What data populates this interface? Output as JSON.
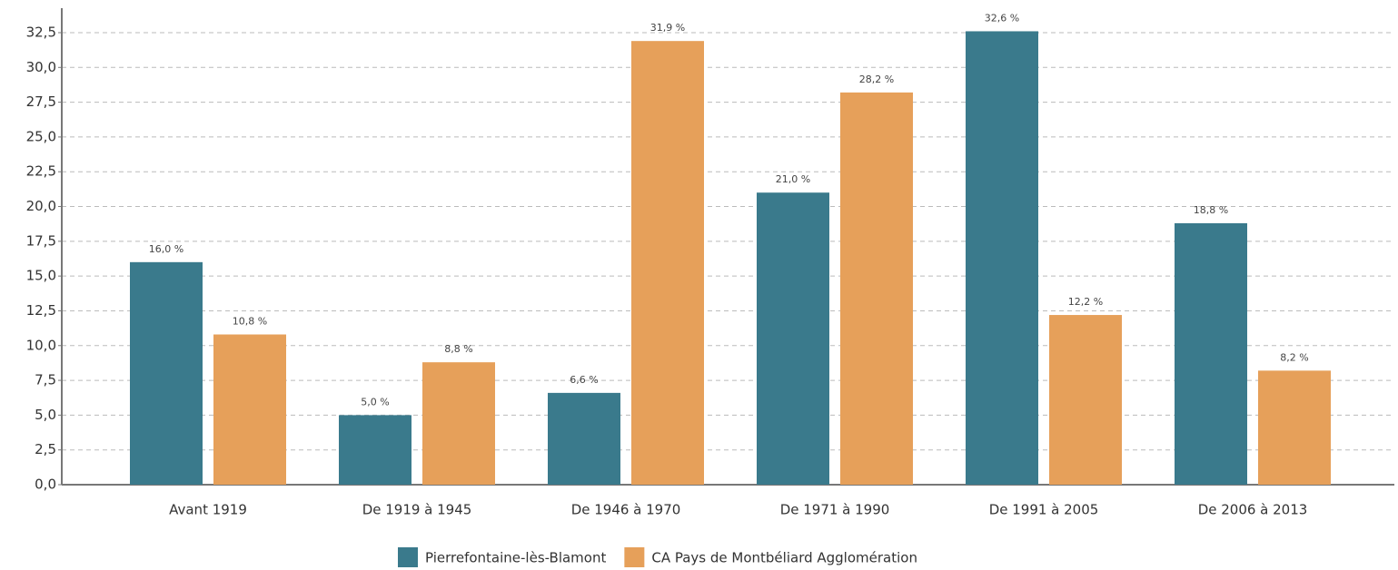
{
  "chart_data": {
    "type": "bar",
    "categories": [
      "Avant 1919",
      "De 1919 à 1945",
      "De 1946 à 1970",
      "De 1971 à 1990",
      "De 1991 à 2005",
      "De 2006 à 2013"
    ],
    "series": [
      {
        "name": "Pierrefontaine-lès-Blamont",
        "color": "#3a7a8c",
        "values": [
          16.0,
          5.0,
          6.6,
          21.0,
          32.6,
          18.8
        ],
        "value_labels": [
          "16,0 %",
          "5,0 %",
          "6,6 %",
          "21,0 %",
          "32,6 %",
          "18,8 %"
        ]
      },
      {
        "name": "CA Pays de Montbéliard Agglomération",
        "color": "#e6a05a",
        "values": [
          10.8,
          8.8,
          31.9,
          28.2,
          12.2,
          8.2
        ],
        "value_labels": [
          "10,8 %",
          "8,8 %",
          "31,9 %",
          "28,2 %",
          "12,2 %",
          "8,2 %"
        ]
      }
    ],
    "ylim": [
      0,
      34
    ],
    "yticks": [
      {
        "value": 0,
        "label": "0,0"
      },
      {
        "value": 2.5,
        "label": "2,5"
      },
      {
        "value": 5,
        "label": "5,0"
      },
      {
        "value": 7.5,
        "label": "7,5"
      },
      {
        "value": 10,
        "label": "10,0"
      },
      {
        "value": 12.5,
        "label": "12,5"
      },
      {
        "value": 15,
        "label": "15,0"
      },
      {
        "value": 17.5,
        "label": "17,5"
      },
      {
        "value": 20,
        "label": "20,0"
      },
      {
        "value": 22.5,
        "label": "22,5"
      },
      {
        "value": 25,
        "label": "25,0"
      },
      {
        "value": 27.5,
        "label": "27,5"
      },
      {
        "value": 30,
        "label": "30,0"
      },
      {
        "value": 32.5,
        "label": "32,5"
      }
    ],
    "grid": true,
    "legend": "bottom"
  }
}
